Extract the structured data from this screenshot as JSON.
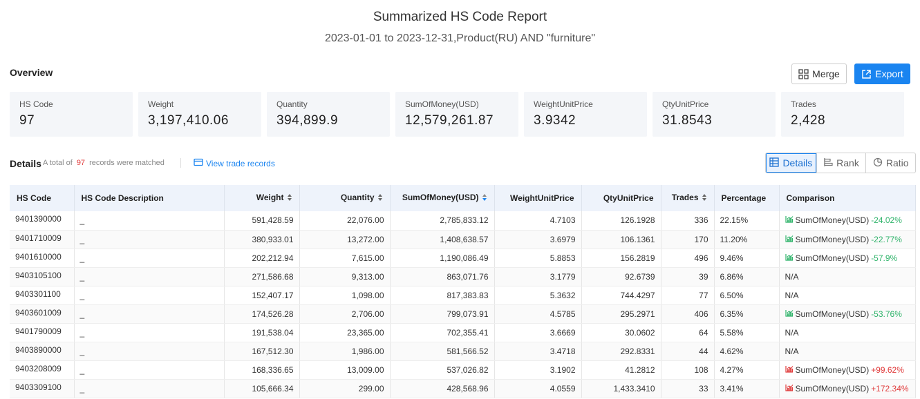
{
  "report": {
    "title": "Summarized HS Code Report",
    "subtitle": "2023-01-01 to 2023-12-31,Product(RU) AND \"furniture\""
  },
  "overview": {
    "label": "Overview",
    "merge_label": "Merge",
    "export_label": "Export",
    "stats": [
      {
        "label": "HS Code",
        "value": "97"
      },
      {
        "label": "Weight",
        "value": "3,197,410.06"
      },
      {
        "label": "Quantity",
        "value": "394,899.9"
      },
      {
        "label": "SumOfMoney(USD)",
        "value": "12,579,261.87"
      },
      {
        "label": "WeightUnitPrice",
        "value": "3.9342"
      },
      {
        "label": "QtyUnitPrice",
        "value": "31.8543"
      },
      {
        "label": "Trades",
        "value": "2,428"
      }
    ]
  },
  "details": {
    "label": "Details",
    "total_prefix": "A total of",
    "total_count": "97",
    "total_suffix": "records were matched",
    "view_records": "View trade records",
    "views": [
      "Details",
      "Rank",
      "Ratio"
    ]
  },
  "table": {
    "headers": [
      "HS Code",
      "HS Code Description",
      "Weight",
      "Quantity",
      "SumOfMoney(USD)",
      "WeightUnitPrice",
      "QtyUnitPrice",
      "Trades",
      "Percentage",
      "Comparison"
    ],
    "rows": [
      [
        "9401390000",
        "_",
        "591,428.59",
        "22,076.00",
        "2,785,833.12",
        "4.7103",
        "126.1928",
        "336",
        "22.15%",
        "SumOfMoney(USD)",
        "-24.02%"
      ],
      [
        "9401710009",
        "_",
        "380,933.01",
        "13,272.00",
        "1,408,638.57",
        "3.6979",
        "106.1361",
        "170",
        "11.20%",
        "SumOfMoney(USD)",
        "-22.77%"
      ],
      [
        "9401610000",
        "_",
        "202,212.94",
        "7,615.00",
        "1,190,086.49",
        "5.8853",
        "156.2819",
        "496",
        "9.46%",
        "SumOfMoney(USD)",
        "-57.9%"
      ],
      [
        "9403105100",
        "_",
        "271,586.68",
        "9,313.00",
        "863,071.76",
        "3.1779",
        "92.6739",
        "39",
        "6.86%",
        "N/A",
        ""
      ],
      [
        "9403301100",
        "_",
        "152,407.17",
        "1,098.00",
        "817,383.83",
        "5.3632",
        "744.4297",
        "77",
        "6.50%",
        "N/A",
        ""
      ],
      [
        "9403601009",
        "_",
        "174,526.28",
        "2,706.00",
        "799,073.91",
        "4.5785",
        "295.2971",
        "406",
        "6.35%",
        "SumOfMoney(USD)",
        "-53.76%"
      ],
      [
        "9401790009",
        "_",
        "191,538.04",
        "23,365.00",
        "702,355.41",
        "3.6669",
        "30.0602",
        "64",
        "5.58%",
        "N/A",
        ""
      ],
      [
        "9403890000",
        "_",
        "167,512.30",
        "1,986.00",
        "581,566.52",
        "3.4718",
        "292.8331",
        "44",
        "4.62%",
        "N/A",
        ""
      ],
      [
        "9403208009",
        "_",
        "168,336.65",
        "13,009.00",
        "537,026.82",
        "3.1902",
        "41.2812",
        "108",
        "4.27%",
        "SumOfMoney(USD)",
        "+99.62%"
      ],
      [
        "9403309100",
        "_",
        "105,666.34",
        "299.00",
        "428,568.96",
        "4.0559",
        "1,433.3410",
        "33",
        "3.41%",
        "SumOfMoney(USD)",
        "+172.34%"
      ]
    ]
  },
  "colors": {
    "accent": "#1a84f0",
    "positive_change": "#e03c3c",
    "negative_change": "#2fb36a"
  }
}
